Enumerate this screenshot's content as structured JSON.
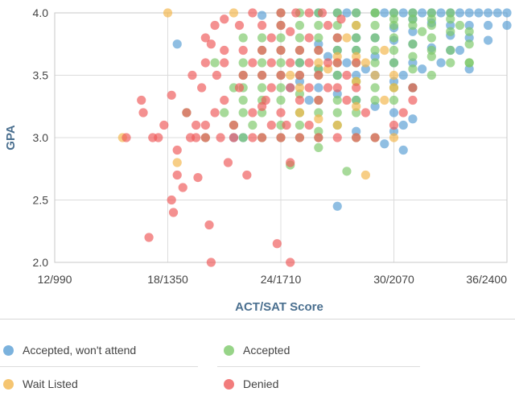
{
  "chart_data": {
    "type": "scatter",
    "title": "",
    "xlabel": "ACT/SAT Score",
    "ylabel": "GPA",
    "xlim": [
      12,
      36
    ],
    "ylim": [
      2.0,
      4.0
    ],
    "x_ticks": [
      {
        "value": 12,
        "label": "12/990"
      },
      {
        "value": 18,
        "label": "18/1350"
      },
      {
        "value": 24,
        "label": "24/1710"
      },
      {
        "value": 30,
        "label": "30/2070"
      },
      {
        "value": 36,
        "label": "36/2400"
      }
    ],
    "y_ticks": [
      {
        "value": 2.0,
        "label": "2.0"
      },
      {
        "value": 2.5,
        "label": "2.5"
      },
      {
        "value": 3.0,
        "label": "3.0"
      },
      {
        "value": 3.5,
        "label": "3.5"
      },
      {
        "value": 4.0,
        "label": "4.0"
      }
    ],
    "grid": true,
    "legend_position": "bottom",
    "series": [
      {
        "name": "Accepted, won't attend",
        "color": "#5a9fd4",
        "points": [
          [
            26,
            4.0
          ],
          [
            27,
            4.0
          ],
          [
            27.5,
            4.0
          ],
          [
            28,
            4.0
          ],
          [
            29,
            4.0
          ],
          [
            29.5,
            4.0
          ],
          [
            30,
            4.0
          ],
          [
            30.5,
            4.0
          ],
          [
            31,
            4.0
          ],
          [
            31.5,
            4.0
          ],
          [
            32,
            4.0
          ],
          [
            32.5,
            4.0
          ],
          [
            33,
            4.0
          ],
          [
            33.5,
            4.0
          ],
          [
            34,
            4.0
          ],
          [
            34.5,
            4.0
          ],
          [
            35,
            4.0
          ],
          [
            35.5,
            4.0
          ],
          [
            36,
            4.0
          ],
          [
            23,
            3.98
          ],
          [
            31,
            3.95
          ],
          [
            32,
            3.92
          ],
          [
            33,
            3.9
          ],
          [
            34,
            3.9
          ],
          [
            35,
            3.9
          ],
          [
            36,
            3.9
          ],
          [
            30,
            3.88
          ],
          [
            31,
            3.85
          ],
          [
            33,
            3.82
          ],
          [
            34,
            3.8
          ],
          [
            35,
            3.78
          ],
          [
            28,
            3.8
          ],
          [
            29,
            3.8
          ],
          [
            30,
            3.78
          ],
          [
            31,
            3.75
          ],
          [
            32,
            3.72
          ],
          [
            33,
            3.7
          ],
          [
            26,
            3.75
          ],
          [
            27,
            3.7
          ],
          [
            28,
            3.7
          ],
          [
            29,
            3.65
          ],
          [
            30,
            3.6
          ],
          [
            31,
            3.6
          ],
          [
            25,
            3.6
          ],
          [
            26,
            3.55
          ],
          [
            27,
            3.5
          ],
          [
            28,
            3.5
          ],
          [
            29,
            3.5
          ],
          [
            30,
            3.45
          ],
          [
            31,
            3.4
          ],
          [
            34,
            3.55
          ],
          [
            25,
            3.45
          ],
          [
            26,
            3.4
          ],
          [
            27,
            3.35
          ],
          [
            28,
            3.3
          ],
          [
            29,
            3.25
          ],
          [
            30,
            3.2
          ],
          [
            31,
            3.15
          ],
          [
            30.5,
            3.1
          ],
          [
            28,
            3.05
          ],
          [
            30,
            3.05
          ],
          [
            29.5,
            2.95
          ],
          [
            30.5,
            2.9
          ],
          [
            18.5,
            3.75
          ],
          [
            22,
            3.0
          ],
          [
            21.5,
            3.0
          ],
          [
            27,
            2.45
          ],
          [
            30.5,
            3.5
          ],
          [
            31.5,
            3.55
          ],
          [
            32.5,
            3.6
          ],
          [
            33.5,
            3.7
          ],
          [
            26.5,
            3.65
          ],
          [
            27.5,
            3.6
          ],
          [
            28.5,
            3.55
          ],
          [
            24.5,
            3.4
          ],
          [
            25.5,
            3.3
          ]
        ]
      },
      {
        "name": "Accepted",
        "color": "#7dc96a",
        "points": [
          [
            24,
            4.0
          ],
          [
            25,
            4.0
          ],
          [
            26,
            4.0
          ],
          [
            27,
            4.0
          ],
          [
            28,
            4.0
          ],
          [
            29,
            4.0
          ],
          [
            30,
            4.0
          ],
          [
            31,
            4.0
          ],
          [
            32,
            4.0
          ],
          [
            33,
            4.0
          ],
          [
            24,
            3.9
          ],
          [
            25,
            3.9
          ],
          [
            26,
            3.9
          ],
          [
            27,
            3.9
          ],
          [
            28,
            3.9
          ],
          [
            29,
            3.9
          ],
          [
            30,
            3.9
          ],
          [
            31,
            3.9
          ],
          [
            32,
            3.9
          ],
          [
            33,
            3.85
          ],
          [
            34,
            3.85
          ],
          [
            22,
            3.8
          ],
          [
            23,
            3.8
          ],
          [
            24,
            3.8
          ],
          [
            25,
            3.8
          ],
          [
            26,
            3.8
          ],
          [
            27,
            3.8
          ],
          [
            28,
            3.8
          ],
          [
            29,
            3.8
          ],
          [
            30,
            3.8
          ],
          [
            31,
            3.75
          ],
          [
            32,
            3.7
          ],
          [
            33,
            3.7
          ],
          [
            34,
            3.75
          ],
          [
            23,
            3.7
          ],
          [
            24,
            3.7
          ],
          [
            25,
            3.7
          ],
          [
            26,
            3.7
          ],
          [
            27,
            3.7
          ],
          [
            28,
            3.7
          ],
          [
            29,
            3.7
          ],
          [
            30,
            3.7
          ],
          [
            31,
            3.65
          ],
          [
            32,
            3.65
          ],
          [
            33,
            3.6
          ],
          [
            34,
            3.6
          ],
          [
            22,
            3.6
          ],
          [
            23,
            3.6
          ],
          [
            24,
            3.6
          ],
          [
            25,
            3.6
          ],
          [
            26,
            3.55
          ],
          [
            27,
            3.6
          ],
          [
            28,
            3.6
          ],
          [
            29,
            3.6
          ],
          [
            30,
            3.6
          ],
          [
            31,
            3.55
          ],
          [
            32,
            3.5
          ],
          [
            22,
            3.5
          ],
          [
            23,
            3.5
          ],
          [
            24,
            3.5
          ],
          [
            25,
            3.5
          ],
          [
            26,
            3.5
          ],
          [
            27,
            3.5
          ],
          [
            28,
            3.45
          ],
          [
            29,
            3.4
          ],
          [
            30,
            3.4
          ],
          [
            31,
            3.4
          ],
          [
            22,
            3.4
          ],
          [
            23,
            3.4
          ],
          [
            24,
            3.4
          ],
          [
            25,
            3.35
          ],
          [
            26,
            3.3
          ],
          [
            27,
            3.3
          ],
          [
            28,
            3.3
          ],
          [
            29,
            3.3
          ],
          [
            30,
            3.3
          ],
          [
            22,
            3.3
          ],
          [
            23,
            3.3
          ],
          [
            24,
            3.3
          ],
          [
            25,
            3.2
          ],
          [
            26,
            3.2
          ],
          [
            27,
            3.2
          ],
          [
            28,
            3.2
          ],
          [
            22,
            3.2
          ],
          [
            23,
            3.2
          ],
          [
            24,
            3.1
          ],
          [
            25,
            3.1
          ],
          [
            26,
            3.05
          ],
          [
            27,
            3.1
          ],
          [
            28,
            3.0
          ],
          [
            29,
            3.0
          ],
          [
            21.5,
            3.1
          ],
          [
            22,
            3.0
          ],
          [
            23,
            3.0
          ],
          [
            24,
            3.0
          ],
          [
            25,
            3.0
          ],
          [
            26,
            3.0
          ],
          [
            26,
            2.92
          ],
          [
            27.5,
            2.73
          ],
          [
            24.5,
            2.78
          ],
          [
            19,
            3.2
          ],
          [
            20,
            3.0
          ],
          [
            21,
            3.2
          ],
          [
            21.5,
            3.4
          ],
          [
            22.5,
            3.1
          ],
          [
            20.5,
            3.6
          ],
          [
            29,
            4.0
          ],
          [
            30,
            3.95
          ],
          [
            31,
            3.95
          ],
          [
            32,
            3.95
          ],
          [
            33,
            3.95
          ],
          [
            33.5,
            3.9
          ],
          [
            34,
            3.6
          ],
          [
            32,
            3.8
          ],
          [
            31.5,
            3.85
          ]
        ]
      },
      {
        "name": "Wait Listed",
        "color": "#f3b74d",
        "points": [
          [
            18,
            4.0
          ],
          [
            21.5,
            4.0
          ],
          [
            15.6,
            3.0
          ],
          [
            18.5,
            2.8
          ],
          [
            28.5,
            2.7
          ],
          [
            30,
            3.0
          ],
          [
            30,
            3.4
          ],
          [
            25,
            3.2
          ],
          [
            26,
            3.15
          ],
          [
            27,
            3.1
          ],
          [
            26.5,
            3.55
          ],
          [
            28,
            3.45
          ],
          [
            28.5,
            3.6
          ],
          [
            29,
            3.5
          ],
          [
            30,
            3.5
          ],
          [
            27,
            3.65
          ],
          [
            28,
            3.65
          ],
          [
            29.5,
            3.7
          ],
          [
            27.5,
            3.8
          ],
          [
            28,
            3.9
          ],
          [
            25,
            3.4
          ],
          [
            24.5,
            3.5
          ],
          [
            26,
            3.6
          ],
          [
            29.5,
            3.3
          ],
          [
            28,
            3.25
          ]
        ]
      },
      {
        "name": "Denied",
        "color": "#ef5b5b",
        "points": [
          [
            15.8,
            3.0
          ],
          [
            16.6,
            3.3
          ],
          [
            16.7,
            3.2
          ],
          [
            17,
            2.2
          ],
          [
            17.2,
            3.0
          ],
          [
            17.5,
            3.0
          ],
          [
            17.8,
            3.1
          ],
          [
            18.2,
            3.34
          ],
          [
            18.5,
            2.7
          ],
          [
            18.5,
            2.9
          ],
          [
            18.2,
            2.5
          ],
          [
            18.3,
            2.4
          ],
          [
            18.8,
            2.6
          ],
          [
            19,
            3.2
          ],
          [
            19.3,
            3.5
          ],
          [
            19.5,
            3.0
          ],
          [
            19.6,
            2.68
          ],
          [
            19.8,
            3.4
          ],
          [
            20,
            3.8
          ],
          [
            20,
            3.6
          ],
          [
            20,
            3.0
          ],
          [
            20.2,
            2.3
          ],
          [
            20.3,
            2.0
          ],
          [
            20.5,
            3.2
          ],
          [
            20.5,
            3.9
          ],
          [
            20.6,
            3.5
          ],
          [
            20.8,
            3.0
          ],
          [
            21,
            3.3
          ],
          [
            21,
            3.6
          ],
          [
            21,
            3.7
          ],
          [
            21.2,
            2.8
          ],
          [
            21.5,
            3.1
          ],
          [
            21.5,
            3.0
          ],
          [
            21.8,
            3.4
          ],
          [
            22,
            3.5
          ],
          [
            22,
            3.7
          ],
          [
            22.2,
            2.7
          ],
          [
            22.5,
            3.2
          ],
          [
            22.5,
            3.6
          ],
          [
            22.5,
            3.0
          ],
          [
            23,
            3.9
          ],
          [
            23,
            3.7
          ],
          [
            23,
            3.5
          ],
          [
            23,
            3.0
          ],
          [
            23.2,
            3.3
          ],
          [
            23.5,
            3.8
          ],
          [
            23.5,
            3.6
          ],
          [
            23.5,
            3.4
          ],
          [
            23.5,
            3.1
          ],
          [
            23.8,
            2.15
          ],
          [
            24,
            4.0
          ],
          [
            24,
            3.9
          ],
          [
            24,
            3.7
          ],
          [
            24,
            3.5
          ],
          [
            24,
            3.2
          ],
          [
            24,
            3.0
          ],
          [
            24.3,
            3.1
          ],
          [
            24.5,
            3.85
          ],
          [
            24.5,
            3.6
          ],
          [
            24.5,
            3.4
          ],
          [
            24.5,
            2.8
          ],
          [
            24.5,
            2.0
          ],
          [
            25,
            3.7
          ],
          [
            25,
            3.5
          ],
          [
            25,
            3.3
          ],
          [
            25,
            3.0
          ],
          [
            25.5,
            4.0
          ],
          [
            25.5,
            3.8
          ],
          [
            25.5,
            3.6
          ],
          [
            25.5,
            3.4
          ],
          [
            25.5,
            3.1
          ],
          [
            26,
            3.7
          ],
          [
            26,
            3.5
          ],
          [
            26,
            3.3
          ],
          [
            26,
            3.0
          ],
          [
            26.5,
            3.9
          ],
          [
            26.5,
            3.6
          ],
          [
            26.5,
            3.4
          ],
          [
            27,
            3.8
          ],
          [
            27,
            3.6
          ],
          [
            27,
            3.4
          ],
          [
            27,
            3.0
          ],
          [
            27.5,
            3.5
          ],
          [
            27.5,
            3.3
          ],
          [
            28,
            3.6
          ],
          [
            28,
            3.4
          ],
          [
            28,
            3.0
          ],
          [
            28.5,
            3.2
          ],
          [
            29,
            3.0
          ],
          [
            30,
            3.1
          ],
          [
            30.5,
            3.2
          ],
          [
            31,
            3.3
          ],
          [
            31,
            3.4
          ],
          [
            22.5,
            4.0
          ],
          [
            23,
            3.25
          ],
          [
            21.8,
            3.9
          ],
          [
            21,
            3.95
          ],
          [
            20.3,
            3.75
          ],
          [
            19.5,
            3.1
          ],
          [
            20,
            3.1
          ],
          [
            19.2,
            3.0
          ],
          [
            24.8,
            4.0
          ],
          [
            26.2,
            4.0
          ],
          [
            27.2,
            3.95
          ]
        ]
      }
    ]
  }
}
